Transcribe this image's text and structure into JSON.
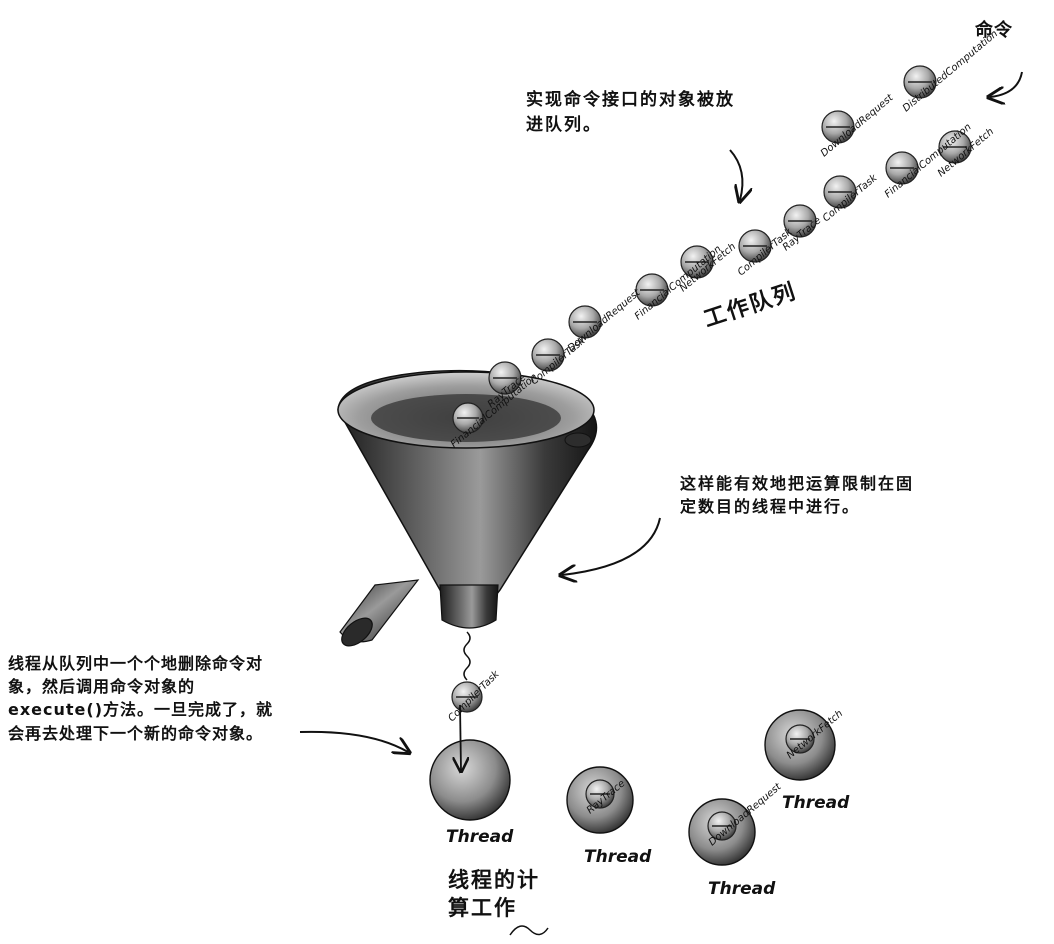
{
  "labels": {
    "command": "命令",
    "objects_queued": "实现命令接口的对象被放进队列。",
    "job_queue": "工作队列",
    "limit_note": "这样能有效地把运算限制在固定数目的线程中进行。",
    "thread_note": "线程从队列中一个个地删除命令对象，然后调用命令对象的execute()方法。一旦完成了，就会再去处理下一个新的命令对象。",
    "computation": "线程的计算工作"
  },
  "queue_items": [
    "DistributedComputation",
    "DownloadRequest",
    "NetworkFetch",
    "FinancialComputation",
    "CompilerTask",
    "RayTrace",
    "CompilerTask",
    "NetworkFetch",
    "FinancialComputation",
    "DownloadRequest",
    "CompilerTask",
    "RayTrace",
    "FinancialComputation"
  ],
  "dropping_item": "CompilerTask",
  "threads": [
    {
      "label": "Thread",
      "task": ""
    },
    {
      "label": "Thread",
      "task": "RayTrace"
    },
    {
      "label": "Thread",
      "task": "DownloadRequest"
    },
    {
      "label": "Thread",
      "task": "NetworkFetch"
    }
  ]
}
